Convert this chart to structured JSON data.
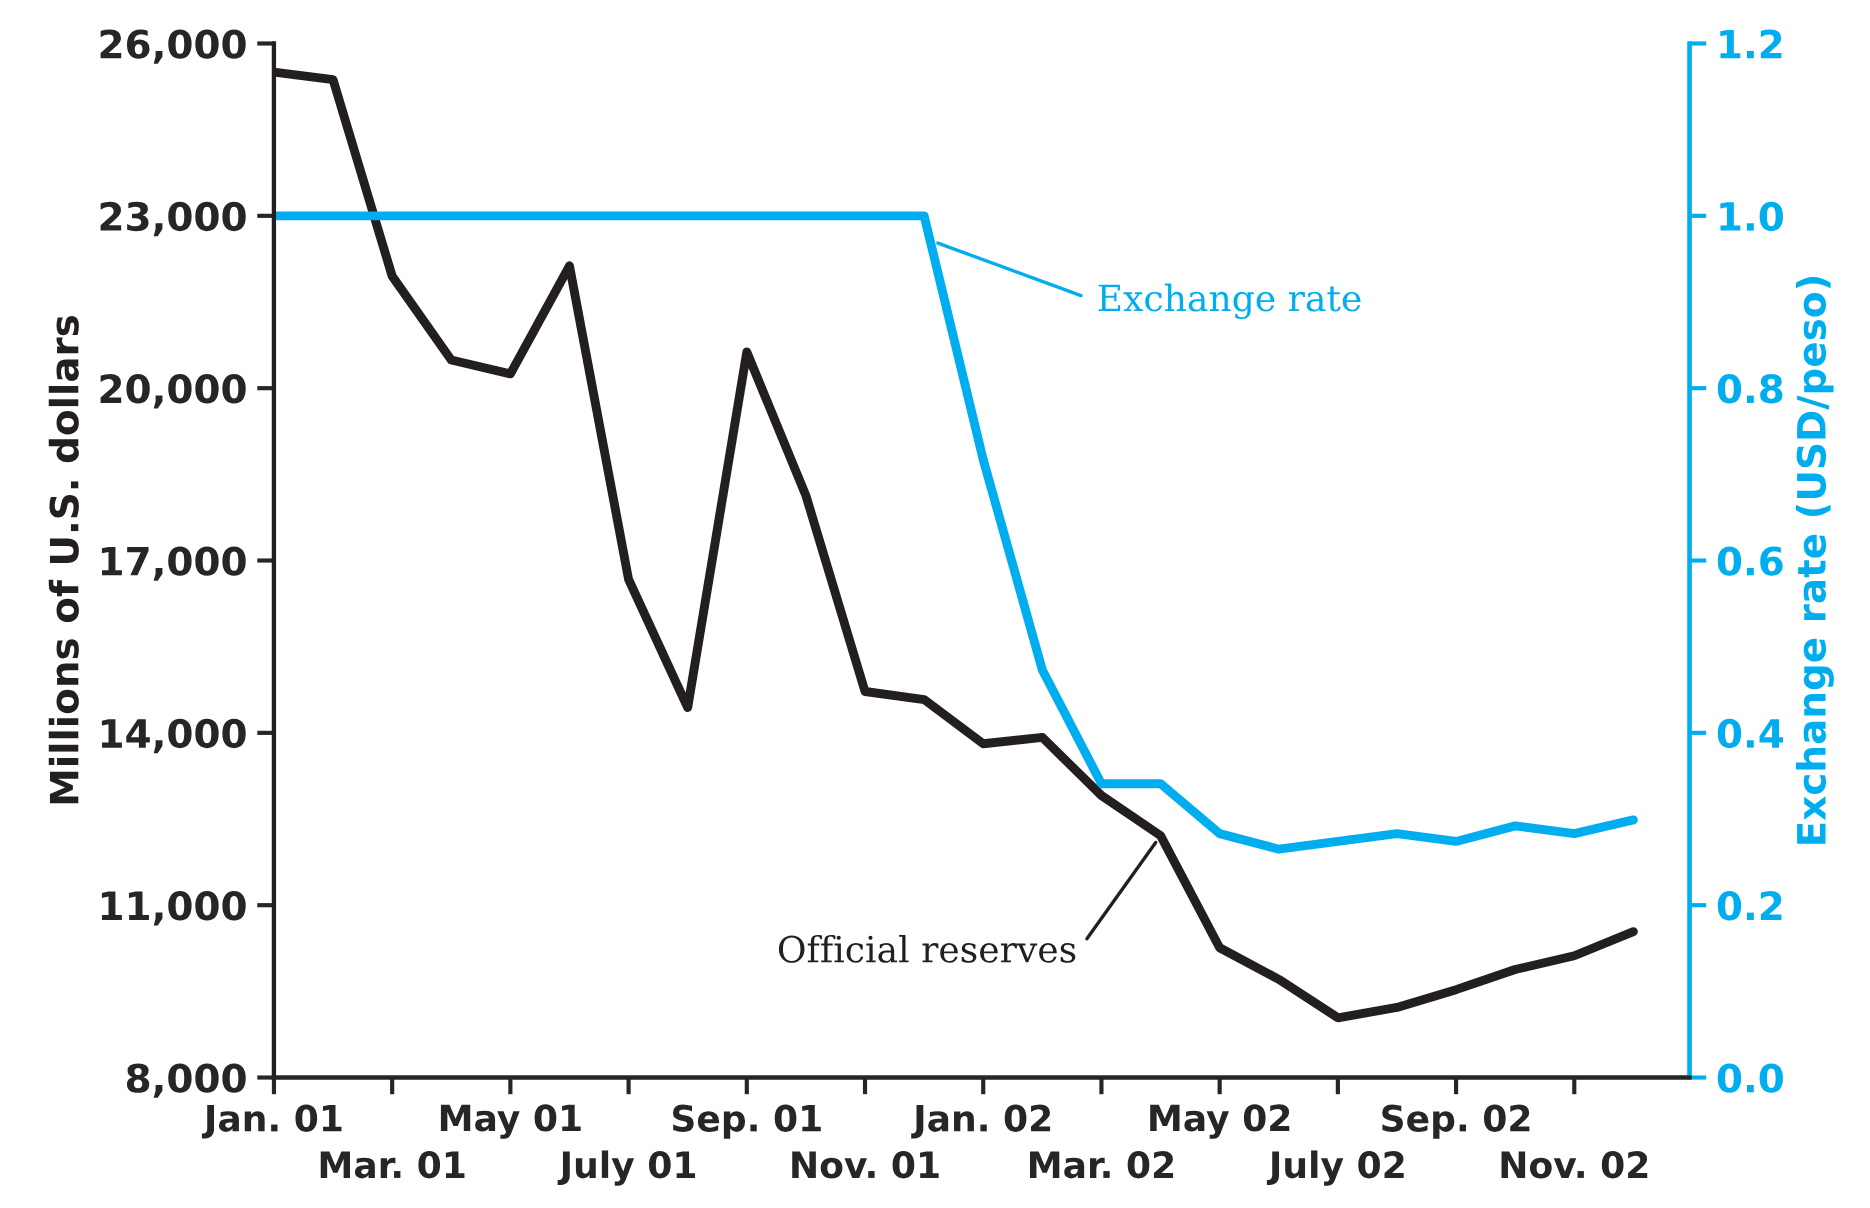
{
  "chart_data": {
    "type": "line",
    "ylabel": "Millions of U.S. dollars",
    "y2label": "Exchange rate (USD/peso)",
    "categories": [
      "Jan. 01",
      null,
      "Mar. 01",
      null,
      "May 01",
      null,
      "July 01",
      null,
      "Sep. 01",
      null,
      "Nov. 01",
      null,
      "Jan. 02",
      null,
      "Mar. 02",
      null,
      "May 02",
      null,
      "July 02",
      null,
      "Sep. 02",
      null,
      "Nov. 02",
      null
    ],
    "series": [
      {
        "name": "Official reserves",
        "color": "#231f20",
        "values": [
          25500,
          25370,
          21950,
          20490,
          20250,
          22130,
          16670,
          14440,
          20630,
          18130,
          14720,
          14580,
          13810,
          13920,
          12910,
          12210,
          10260,
          9710,
          9040,
          9220,
          9530,
          9880,
          10120,
          10540
        ]
      },
      {
        "name": "Exchange rate",
        "color": "#00aeef",
        "axis": "y2",
        "values": [
          1.0,
          1.0,
          1.0,
          1.0,
          1.0,
          1.0,
          1.0,
          1.0,
          1.0,
          1.0,
          1.0,
          1.0,
          0.717,
          0.473,
          0.341,
          0.341,
          0.283,
          0.265,
          0.274,
          0.283,
          0.274,
          0.292,
          0.283,
          0.299
        ]
      }
    ],
    "ylim": [
      8000,
      26000
    ],
    "yticks": [
      {
        "value": 8000,
        "label": "8,000"
      },
      {
        "value": 11000,
        "label": "11,000"
      },
      {
        "value": 14000,
        "label": "14,000"
      },
      {
        "value": 17000,
        "label": "17,000"
      },
      {
        "value": 20000,
        "label": "20,000"
      },
      {
        "value": 23000,
        "label": "23,000"
      },
      {
        "value": 26000,
        "label": "26,000"
      }
    ],
    "y2lim": [
      0,
      1.2
    ],
    "y2ticks": [
      {
        "value": 0,
        "label": "0.0"
      },
      {
        "value": 0.2,
        "label": "0.2"
      },
      {
        "value": 0.4,
        "label": "0.4"
      },
      {
        "value": 0.6,
        "label": "0.6"
      },
      {
        "value": 0.8,
        "label": "0.8"
      },
      {
        "value": 1.0,
        "label": "1.0"
      },
      {
        "value": 1.2,
        "label": "1.2"
      }
    ],
    "grid": false,
    "legend": false,
    "marker": "none",
    "line_style": "solid"
  }
}
